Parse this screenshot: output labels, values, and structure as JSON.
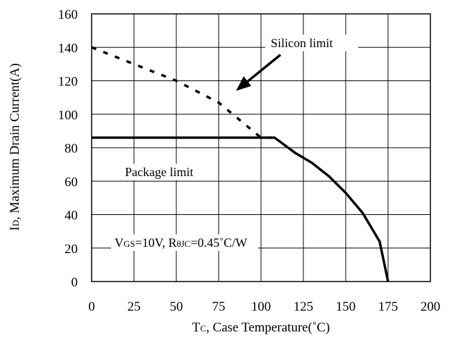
{
  "chart_data": {
    "type": "line",
    "xlim": [
      0,
      200
    ],
    "ylim": [
      0,
      160
    ],
    "x_ticks": [
      "0",
      "25",
      "50",
      "75",
      "100",
      "125",
      "150",
      "175",
      "200"
    ],
    "y_ticks": [
      "0",
      "20",
      "40",
      "60",
      "80",
      "100",
      "120",
      "140",
      "160"
    ],
    "grid": true,
    "xlabel": {
      "main": "T",
      "sub": "C",
      "rest": ", Case Temperature(˚C)"
    },
    "ylabel": {
      "main": "I",
      "sub": "D",
      "rest": ", Maximum Drain Current(A)"
    },
    "series": [
      {
        "style": "dashed",
        "points": [
          [
            0,
            140
          ],
          [
            25,
            130
          ],
          [
            50,
            120
          ],
          [
            75,
            107
          ],
          [
            100,
            86
          ],
          [
            108,
            86
          ]
        ]
      },
      {
        "style": "solid",
        "points": [
          [
            0,
            86
          ],
          [
            108,
            86
          ],
          [
            120,
            77
          ],
          [
            130,
            71
          ],
          [
            140,
            63
          ],
          [
            150,
            53
          ],
          [
            160,
            41
          ],
          [
            170,
            24
          ],
          [
            175,
            0
          ]
        ]
      }
    ],
    "annotations": {
      "silicon_limit": "Silicon limit",
      "package_limit": "Package limit",
      "conditions": {
        "v": "V",
        "v_sub": "GS",
        "v_rest": "=10V, R",
        "r_sub": "θJC",
        "r_rest": "=0.45˚C/W"
      }
    }
  }
}
